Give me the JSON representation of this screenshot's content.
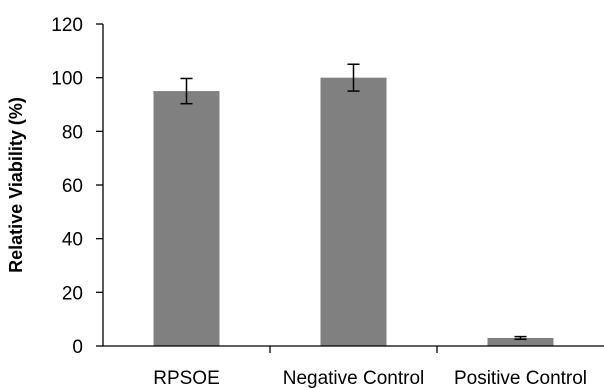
{
  "chart_data": {
    "type": "bar",
    "title": "",
    "xlabel": "",
    "ylabel": "Relative Viability (%)",
    "ylim": [
      0,
      120
    ],
    "yticks": [
      0,
      20,
      40,
      60,
      80,
      100,
      120
    ],
    "grid": false,
    "legend": "none",
    "bar_color": "#808080",
    "categories": [
      "RPSOE",
      "Negative Control",
      "Positive Control"
    ],
    "values": [
      95,
      100,
      3
    ],
    "error": [
      4.7,
      5,
      0.5
    ]
  }
}
